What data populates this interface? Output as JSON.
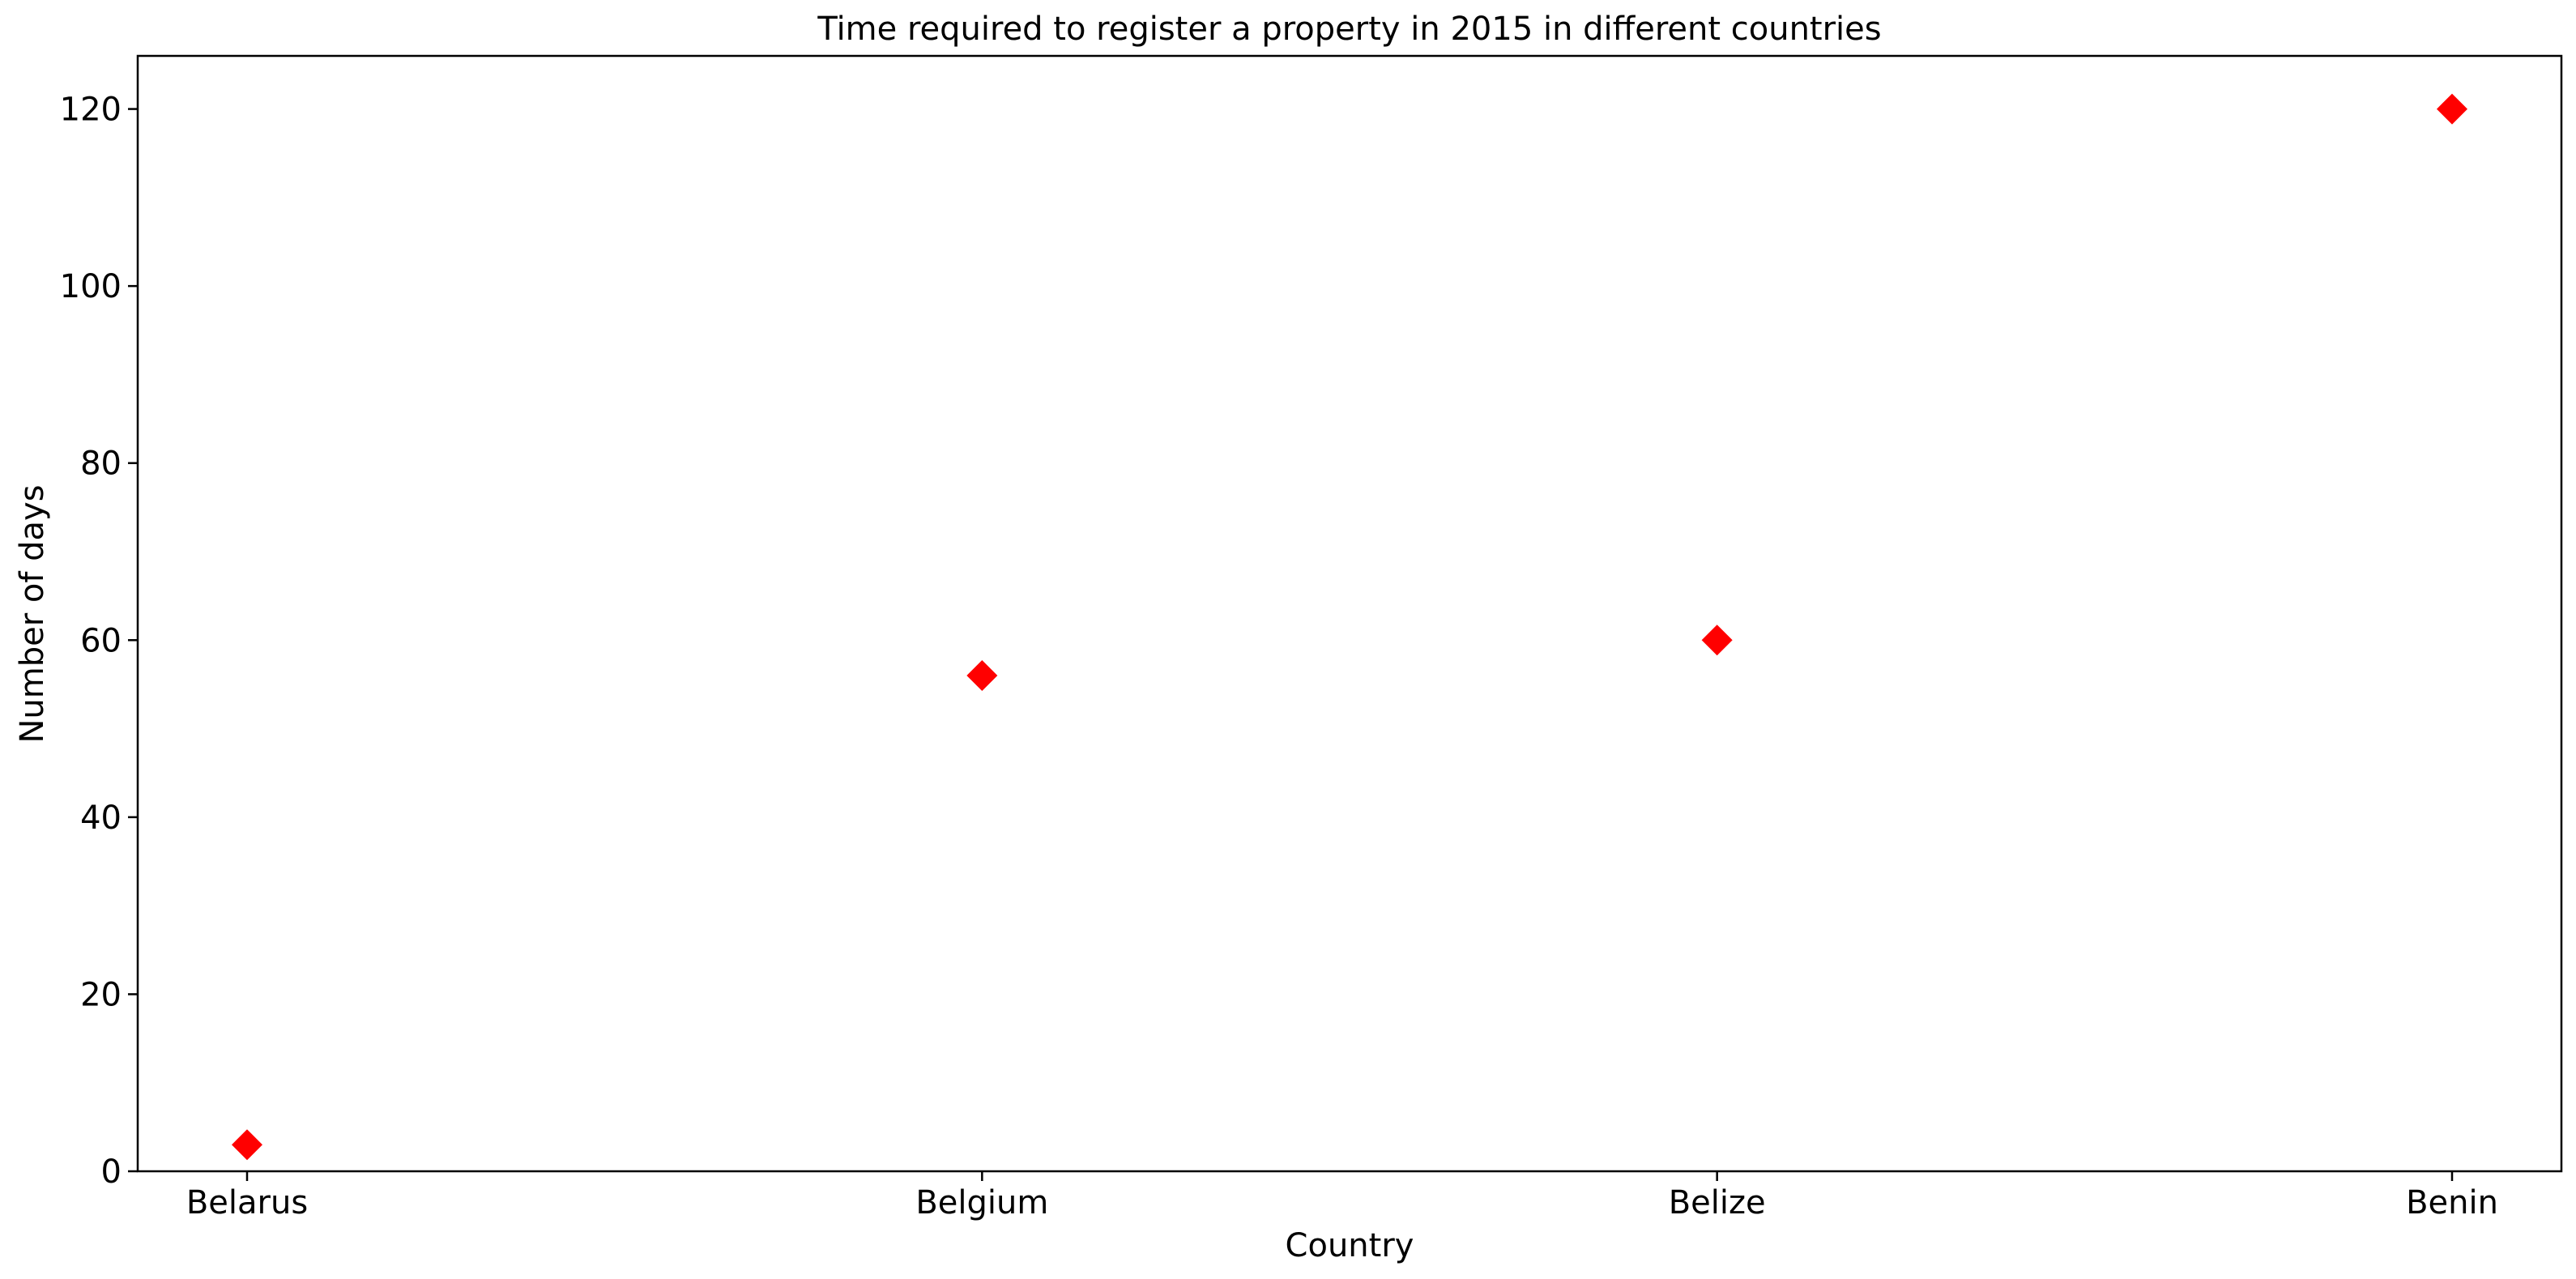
{
  "chart_data": {
    "type": "scatter",
    "title": "Time required to register a property in 2015 in different countries",
    "xlabel": "Country",
    "ylabel": "Number of days",
    "categories": [
      "Belarus",
      "Belgium",
      "Belize",
      "Benin"
    ],
    "series": [
      {
        "values": [
          3,
          56,
          60,
          120
        ],
        "color": "#ff0000",
        "marker": "diamond"
      }
    ],
    "ylim": [
      0,
      126
    ],
    "yticks": [
      0,
      20,
      40,
      60,
      80,
      100,
      120
    ],
    "grid": false
  }
}
